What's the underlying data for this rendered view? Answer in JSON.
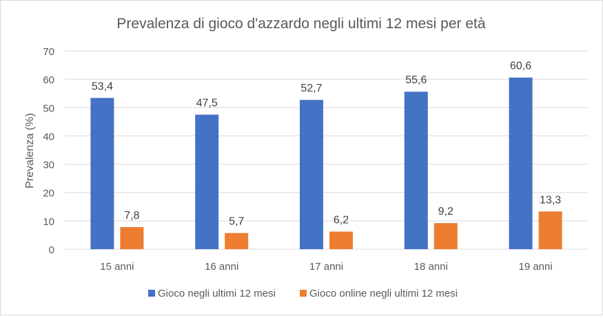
{
  "chart_data": {
    "type": "bar",
    "title": "Prevalenza di gioco d'azzardo negli ultimi 12 mesi per età",
    "xlabel": "",
    "ylabel": "Prevalenza (%)",
    "ylim": [
      0,
      70
    ],
    "yticks": [
      0,
      10,
      20,
      30,
      40,
      50,
      60,
      70
    ],
    "grid": true,
    "legend_position": "bottom",
    "categories": [
      "15 anni",
      "16 anni",
      "17 anni",
      "18 anni",
      "19 anni"
    ],
    "series": [
      {
        "name": "Gioco negli ultimi 12 mesi",
        "color": "#4472c4",
        "values": [
          53.4,
          47.5,
          52.7,
          55.6,
          60.6
        ],
        "labels": [
          "53,4",
          "47,5",
          "52,7",
          "55,6",
          "60,6"
        ]
      },
      {
        "name": "Gioco online negli ultimi 12 mesi",
        "color": "#ed7d31",
        "values": [
          7.8,
          5.7,
          6.2,
          9.2,
          13.3
        ],
        "labels": [
          "7,8",
          "5,7",
          "6,2",
          "9,2",
          "13,3"
        ]
      }
    ]
  }
}
